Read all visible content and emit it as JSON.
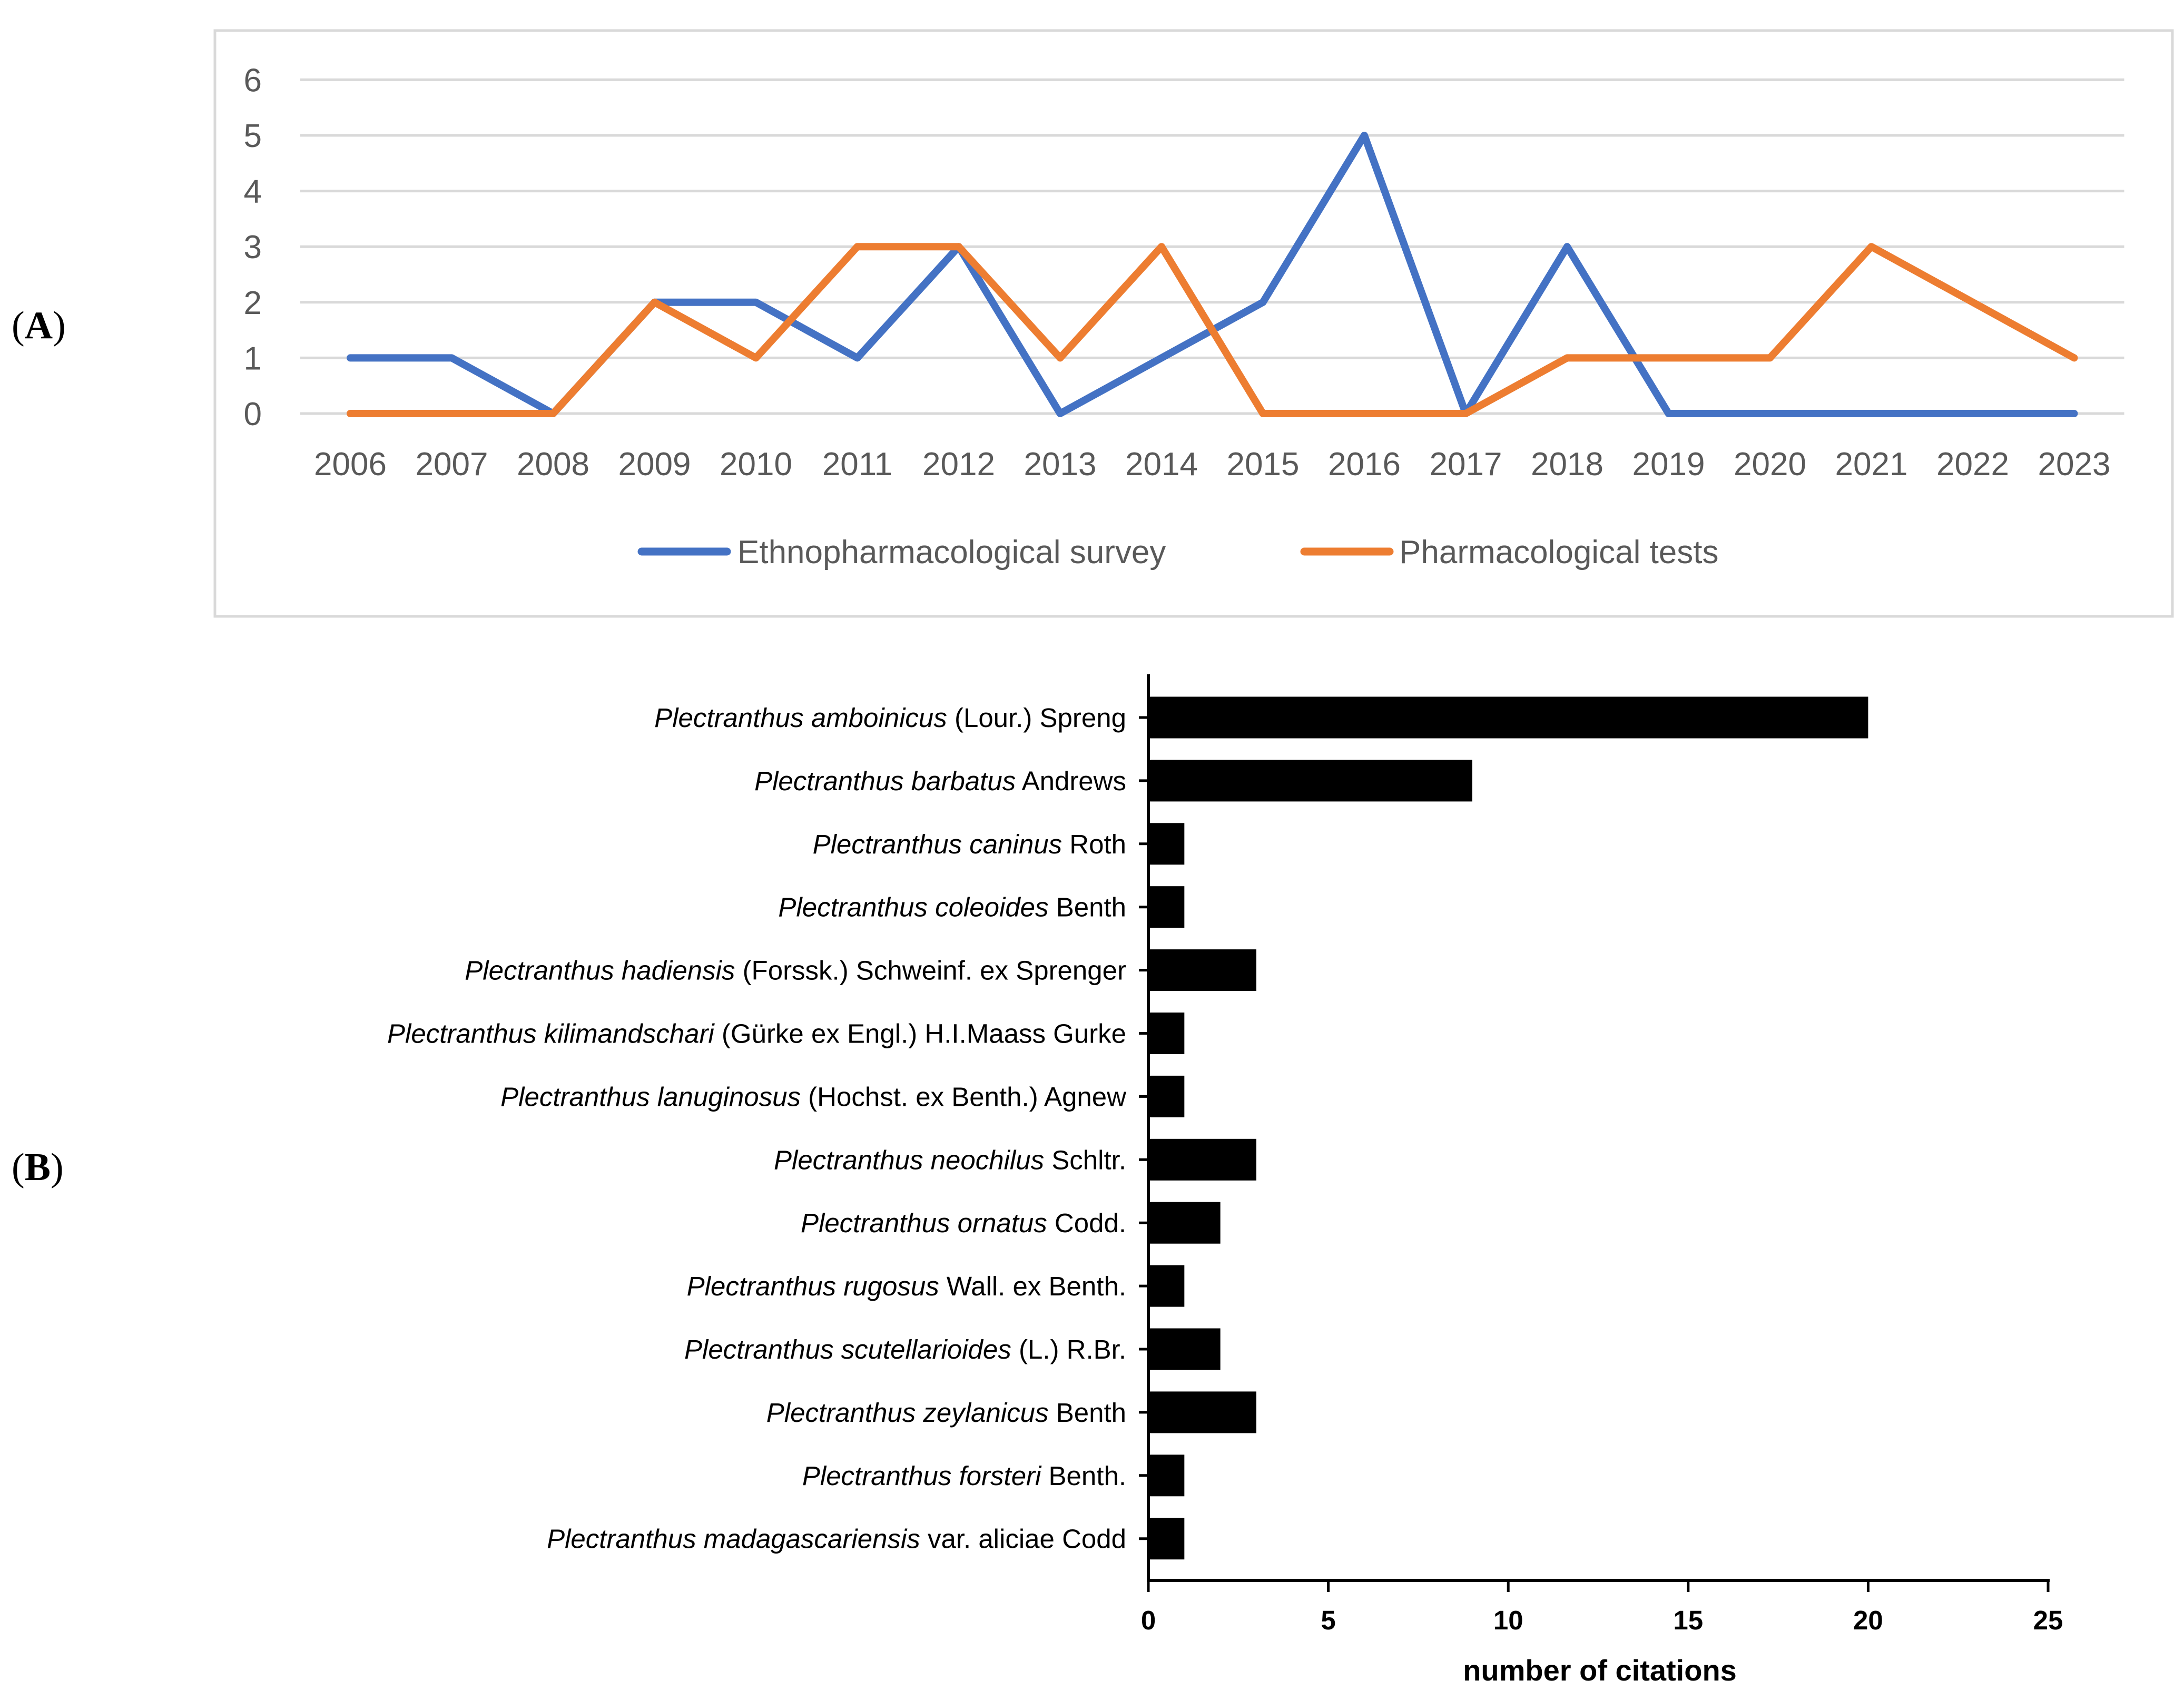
{
  "panels": {
    "a_label_open": "(",
    "a_label_letter": "A",
    "a_label_close": ")",
    "b_label_open": "(",
    "b_label_letter": "B",
    "b_label_close": ")"
  },
  "chart_data": [
    {
      "type": "line",
      "x": [
        "2006",
        "2007",
        "2008",
        "2009",
        "2010",
        "2011",
        "2012",
        "2013",
        "2014",
        "2015",
        "2016",
        "2017",
        "2018",
        "2019",
        "2020",
        "2021",
        "2022",
        "2023"
      ],
      "ylim": [
        0,
        6
      ],
      "yticks": [
        "0",
        "1",
        "2",
        "3",
        "4",
        "5",
        "6"
      ],
      "grid": true,
      "legend_position": "bottom",
      "series": [
        {
          "name": "Ethnopharmacological survey",
          "color": "#4472C4",
          "values": [
            1,
            1,
            0,
            2,
            2,
            1,
            3,
            0,
            1,
            2,
            5,
            0,
            3,
            0,
            0,
            0,
            0,
            0
          ]
        },
        {
          "name": "Pharmacological tests",
          "color": "#ED7D31",
          "values": [
            0,
            0,
            0,
            2,
            1,
            3,
            3,
            1,
            3,
            0,
            0,
            0,
            1,
            1,
            1,
            3,
            2,
            1
          ]
        }
      ]
    },
    {
      "type": "bar",
      "orientation": "horizontal",
      "categories": [
        {
          "italic": "Plectranthus amboinicus",
          "rest": " (Lour.) Spreng"
        },
        {
          "italic": "Plectranthus barbatus",
          "rest": " Andrews"
        },
        {
          "italic": "Plectranthus caninus",
          "rest": " Roth"
        },
        {
          "italic": "Plectranthus coleoides",
          "rest": " Benth"
        },
        {
          "italic": "Plectranthus hadiensis",
          "rest": " (Forssk.) Schweinf. ex Sprenger"
        },
        {
          "italic": "Plectranthus kilimandschari",
          "rest": " (Gürke ex Engl.) H.I.Maass Gurke"
        },
        {
          "italic": "Plectranthus lanuginosus",
          "rest": " (Hochst. ex Benth.) Agnew"
        },
        {
          "italic": "Plectranthus neochilus",
          "rest": " Schltr."
        },
        {
          "italic": "Plectranthus ornatus",
          "rest": " Codd."
        },
        {
          "italic": "Plectranthus rugosus",
          "rest": " Wall. ex Benth."
        },
        {
          "italic": "Plectranthus scutellarioides",
          "rest": " (L.) R.Br."
        },
        {
          "italic": "Plectranthus zeylanicus",
          "rest": " Benth"
        },
        {
          "italic": "Plectranthus forsteri",
          "rest": " Benth."
        },
        {
          "italic": "Plectranthus madagascariensis",
          "rest": " var. aliciae Codd"
        }
      ],
      "values": [
        20,
        9,
        1,
        1,
        3,
        1,
        1,
        3,
        2,
        1,
        2,
        3,
        1,
        1
      ],
      "xlim": [
        0,
        25
      ],
      "xticks": [
        "0",
        "5",
        "10",
        "15",
        "20",
        "25"
      ],
      "xlabel": "number of citations",
      "color": "#000000"
    }
  ]
}
